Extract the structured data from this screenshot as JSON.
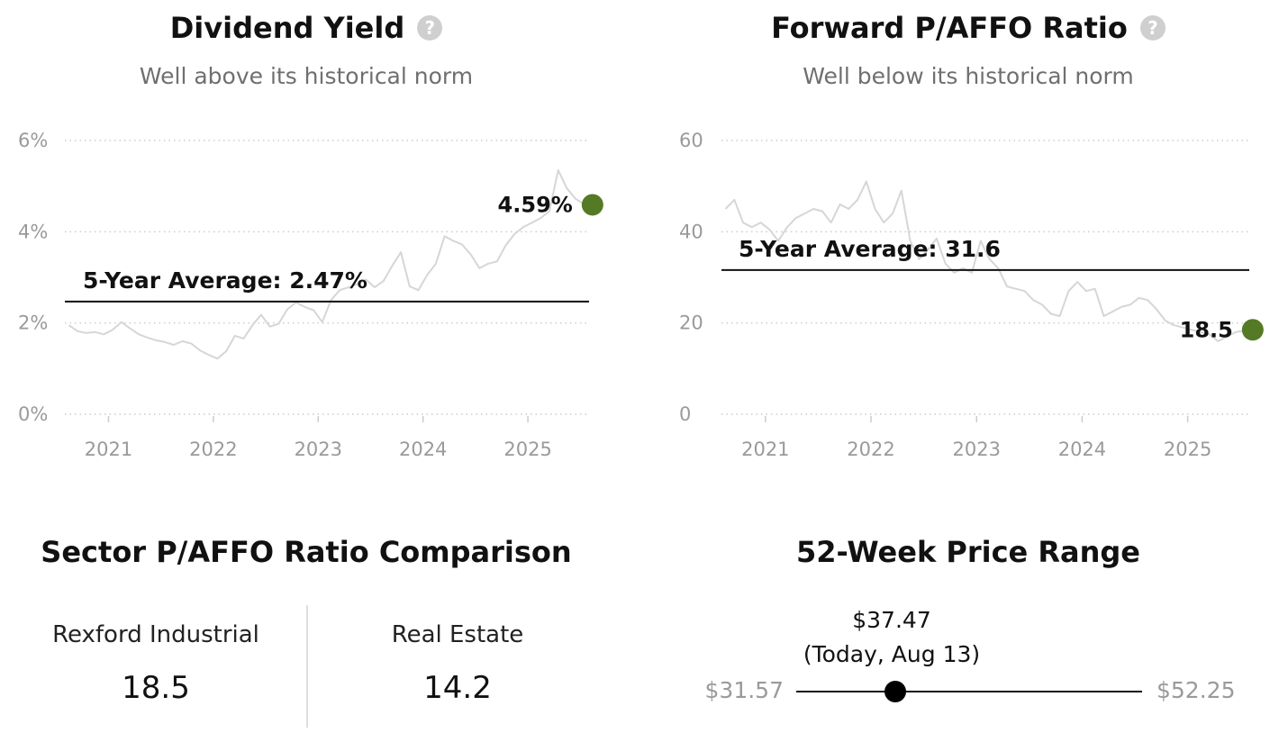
{
  "chart_data": [
    {
      "type": "line",
      "title": "Dividend Yield",
      "subtitle": "Well above its historical norm",
      "y_unit": "%",
      "ylim": [
        0,
        6
      ],
      "y_ticks": [
        0,
        2,
        4,
        6
      ],
      "y_tick_labels": [
        "0%",
        "2%",
        "4%",
        "6%"
      ],
      "x_tick_labels": [
        "2021",
        "2022",
        "2023",
        "2024",
        "2025"
      ],
      "xlim": [
        "2020-08",
        "2025-08"
      ],
      "average": 2.47,
      "average_label": "5-Year Average: 2.47%",
      "current_value": 4.59,
      "current_label": "4.59%",
      "grid": true,
      "series": [
        {
          "values": [
            [
              "2020-08-15",
              1.95
            ],
            [
              "2020-09-15",
              1.82
            ],
            [
              "2020-10-15",
              1.78
            ],
            [
              "2020-11-15",
              1.8
            ],
            [
              "2020-12-15",
              1.75
            ],
            [
              "2021-01-15",
              1.85
            ],
            [
              "2021-02-15",
              2.02
            ],
            [
              "2021-03-15",
              1.88
            ],
            [
              "2021-04-15",
              1.75
            ],
            [
              "2021-05-15",
              1.68
            ],
            [
              "2021-06-15",
              1.62
            ],
            [
              "2021-07-15",
              1.58
            ],
            [
              "2021-08-15",
              1.52
            ],
            [
              "2021-09-15",
              1.6
            ],
            [
              "2021-10-15",
              1.55
            ],
            [
              "2021-11-15",
              1.4
            ],
            [
              "2021-12-15",
              1.3
            ],
            [
              "2022-01-15",
              1.22
            ],
            [
              "2022-02-15",
              1.38
            ],
            [
              "2022-03-15",
              1.72
            ],
            [
              "2022-04-15",
              1.66
            ],
            [
              "2022-05-15",
              1.95
            ],
            [
              "2022-06-15",
              2.18
            ],
            [
              "2022-07-15",
              1.92
            ],
            [
              "2022-08-15",
              1.98
            ],
            [
              "2022-09-15",
              2.3
            ],
            [
              "2022-10-15",
              2.45
            ],
            [
              "2022-11-15",
              2.35
            ],
            [
              "2022-12-15",
              2.28
            ],
            [
              "2023-01-15",
              2.02
            ],
            [
              "2023-02-15",
              2.5
            ],
            [
              "2023-03-15",
              2.72
            ],
            [
              "2023-04-15",
              2.78
            ],
            [
              "2023-05-15",
              2.85
            ],
            [
              "2023-06-15",
              2.95
            ],
            [
              "2023-07-15",
              2.78
            ],
            [
              "2023-08-15",
              2.92
            ],
            [
              "2023-09-15",
              3.25
            ],
            [
              "2023-10-15",
              3.55
            ],
            [
              "2023-11-15",
              2.8
            ],
            [
              "2023-12-15",
              2.72
            ],
            [
              "2024-01-15",
              3.05
            ],
            [
              "2024-02-15",
              3.3
            ],
            [
              "2024-03-15",
              3.9
            ],
            [
              "2024-04-15",
              3.8
            ],
            [
              "2024-05-15",
              3.72
            ],
            [
              "2024-06-15",
              3.5
            ],
            [
              "2024-07-15",
              3.2
            ],
            [
              "2024-08-15",
              3.3
            ],
            [
              "2024-09-15",
              3.35
            ],
            [
              "2024-10-15",
              3.7
            ],
            [
              "2024-11-15",
              3.95
            ],
            [
              "2024-12-15",
              4.1
            ],
            [
              "2025-01-15",
              4.2
            ],
            [
              "2025-02-15",
              4.3
            ],
            [
              "2025-03-15",
              4.45
            ],
            [
              "2025-04-15",
              5.35
            ],
            [
              "2025-05-15",
              4.95
            ],
            [
              "2025-06-15",
              4.72
            ],
            [
              "2025-07-15",
              4.6
            ],
            [
              "2025-08-13",
              4.59
            ]
          ]
        }
      ]
    },
    {
      "type": "line",
      "title": "Forward P/AFFO Ratio",
      "subtitle": "Well below its historical norm",
      "ylim": [
        0,
        60
      ],
      "y_ticks": [
        0,
        20,
        40,
        60
      ],
      "y_tick_labels": [
        "0",
        "20",
        "40",
        "60"
      ],
      "x_tick_labels": [
        "2021",
        "2022",
        "2023",
        "2024",
        "2025"
      ],
      "xlim": [
        "2020-08",
        "2025-08"
      ],
      "average": 31.6,
      "average_label": "5-Year Average: 31.6",
      "current_value": 18.5,
      "current_label": "18.5",
      "grid": true,
      "series": [
        {
          "values": [
            [
              "2020-08-15",
              45.0
            ],
            [
              "2020-09-15",
              47.0
            ],
            [
              "2020-10-15",
              42.0
            ],
            [
              "2020-11-15",
              41.0
            ],
            [
              "2020-12-15",
              42.0
            ],
            [
              "2021-01-15",
              40.5
            ],
            [
              "2021-02-15",
              38.0
            ],
            [
              "2021-03-15",
              41.0
            ],
            [
              "2021-04-15",
              43.0
            ],
            [
              "2021-05-15",
              44.0
            ],
            [
              "2021-06-15",
              45.0
            ],
            [
              "2021-07-15",
              44.5
            ],
            [
              "2021-08-15",
              42.0
            ],
            [
              "2021-09-15",
              46.0
            ],
            [
              "2021-10-15",
              45.0
            ],
            [
              "2021-11-15",
              47.0
            ],
            [
              "2021-12-15",
              51.0
            ],
            [
              "2022-01-15",
              45.0
            ],
            [
              "2022-02-15",
              42.0
            ],
            [
              "2022-03-15",
              44.0
            ],
            [
              "2022-04-15",
              49.0
            ],
            [
              "2022-05-15",
              38.0
            ],
            [
              "2022-06-15",
              34.0
            ],
            [
              "2022-07-15",
              36.0
            ],
            [
              "2022-08-15",
              38.5
            ],
            [
              "2022-09-15",
              33.0
            ],
            [
              "2022-10-15",
              31.0
            ],
            [
              "2022-11-15",
              32.0
            ],
            [
              "2022-12-15",
              31.0
            ],
            [
              "2023-01-15",
              38.0
            ],
            [
              "2023-02-15",
              34.0
            ],
            [
              "2023-03-15",
              32.0
            ],
            [
              "2023-04-15",
              28.0
            ],
            [
              "2023-05-15",
              27.5
            ],
            [
              "2023-06-15",
              27.0
            ],
            [
              "2023-07-15",
              25.0
            ],
            [
              "2023-08-15",
              24.0
            ],
            [
              "2023-09-15",
              22.0
            ],
            [
              "2023-10-15",
              21.5
            ],
            [
              "2023-11-15",
              27.0
            ],
            [
              "2023-12-15",
              29.0
            ],
            [
              "2024-01-15",
              27.0
            ],
            [
              "2024-02-15",
              27.5
            ],
            [
              "2024-03-15",
              21.5
            ],
            [
              "2024-04-15",
              22.5
            ],
            [
              "2024-05-15",
              23.5
            ],
            [
              "2024-06-15",
              24.0
            ],
            [
              "2024-07-15",
              25.5
            ],
            [
              "2024-08-15",
              25.0
            ],
            [
              "2024-09-15",
              23.0
            ],
            [
              "2024-10-15",
              20.5
            ],
            [
              "2024-11-15",
              19.5
            ],
            [
              "2024-12-15",
              19.0
            ],
            [
              "2025-01-15",
              18.5
            ],
            [
              "2025-02-15",
              18.0
            ],
            [
              "2025-03-15",
              17.5
            ],
            [
              "2025-04-15",
              16.0
            ],
            [
              "2025-05-15",
              17.0
            ],
            [
              "2025-06-15",
              18.0
            ],
            [
              "2025-07-15",
              18.3
            ],
            [
              "2025-08-13",
              18.5
            ]
          ]
        }
      ]
    }
  ],
  "colors": {
    "history_line": "#d6d6d6",
    "current_marker": "#557a26",
    "average_line": "#111111",
    "gridline": "#cccccc"
  },
  "help_icon": "question-circle-icon",
  "sector_comparison": {
    "title": "Sector P/AFFO Ratio Comparison",
    "items": [
      {
        "name": "Rexford Industrial",
        "value": "18.5"
      },
      {
        "name": "Real Estate",
        "value": "14.2"
      }
    ]
  },
  "price_range": {
    "title": "52-Week Price Range",
    "low": "$31.57",
    "high": "$52.25",
    "current": "$37.47",
    "current_caption": "(Today, Aug 13)",
    "low_value": 31.57,
    "high_value": 52.25,
    "current_value": 37.47
  }
}
